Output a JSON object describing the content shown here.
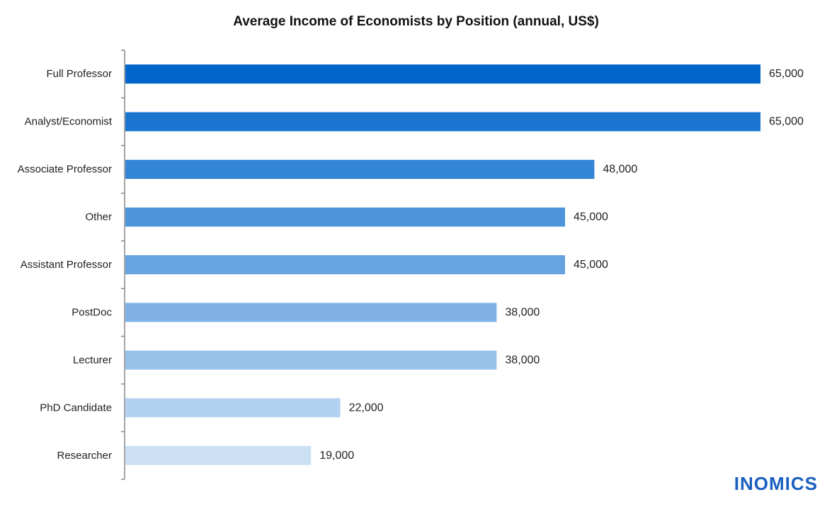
{
  "chart_data": {
    "type": "bar",
    "orientation": "horizontal",
    "title": "Average Income of Economists by Position (annual, US$)",
    "xlabel": "",
    "ylabel": "",
    "categories": [
      "Full Professor",
      "Analyst/Economist",
      "Associate Professor",
      "Other",
      "Assistant Professor",
      "PostDoc",
      "Lecturer",
      "PhD Candidate",
      "Researcher"
    ],
    "values": [
      65000,
      65000,
      48000,
      45000,
      45000,
      38000,
      38000,
      22000,
      19000
    ],
    "value_labels": [
      "65,000",
      "65,000",
      "48,000",
      "45,000",
      "45,000",
      "38,000",
      "38,000",
      "22,000",
      "19,000"
    ],
    "colors": [
      "#0066cc",
      "#1a75d1",
      "#3385d6",
      "#4d94db",
      "#66a3e0",
      "#80b2e6",
      "#99c2eb",
      "#b3d1f0",
      "#cce0f5"
    ],
    "xlim": [
      0,
      65000
    ],
    "grid": false,
    "legend": "none"
  },
  "brand": {
    "logo_text": "INOMICS",
    "color": "#1a5fbf"
  }
}
